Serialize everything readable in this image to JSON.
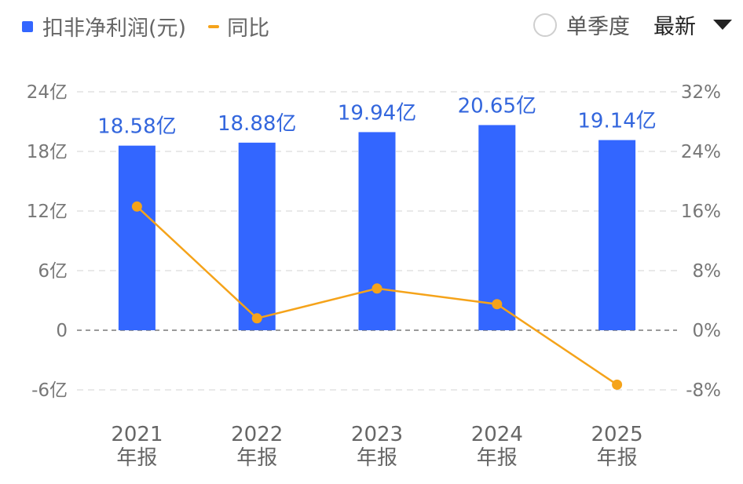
{
  "legend": {
    "bar_label": "扣非净利润(元)",
    "line_label": "同比"
  },
  "controls": {
    "quarter_toggle_label": "单季度",
    "period_select_value": "最新"
  },
  "colors": {
    "bar": "#3366ff",
    "line": "#f5a31a",
    "label": "#3366dd"
  },
  "chart_data": {
    "type": "bar",
    "categories": [
      {
        "year": "2021",
        "period": "年报"
      },
      {
        "year": "2022",
        "period": "年报"
      },
      {
        "year": "2023",
        "period": "年报"
      },
      {
        "year": "2024",
        "period": "年报"
      },
      {
        "year": "2025",
        "period": "年报"
      }
    ],
    "series": [
      {
        "name": "扣非净利润(元)",
        "type": "bar",
        "axis": "left",
        "values": [
          18.58,
          18.88,
          19.94,
          20.65,
          19.14
        ],
        "labels": [
          "18.58亿",
          "18.88亿",
          "19.94亿",
          "20.65亿",
          "19.14亿"
        ]
      },
      {
        "name": "同比",
        "type": "line",
        "axis": "right",
        "values": [
          16.6,
          1.6,
          5.6,
          3.5,
          -7.3
        ]
      }
    ],
    "left_axis": {
      "min": -6,
      "max": 24,
      "ticks": [
        24,
        18,
        12,
        6,
        0,
        -6
      ],
      "tick_labels": [
        "24亿",
        "18亿",
        "12亿",
        "6亿",
        "0",
        "-6亿"
      ]
    },
    "right_axis": {
      "min": -8,
      "max": 32,
      "ticks": [
        32,
        24,
        16,
        8,
        0,
        -8
      ],
      "tick_labels": [
        "32%",
        "24%",
        "16%",
        "8%",
        "0%",
        "-8%"
      ]
    },
    "grid": true
  }
}
